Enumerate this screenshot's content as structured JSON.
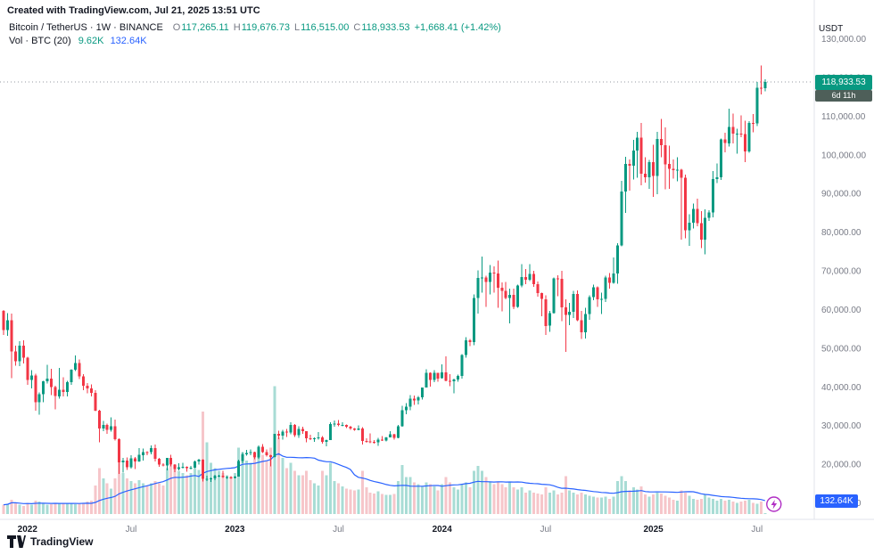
{
  "attribution": "Created with TradingView.com, Jul 21, 2025 13:51 UTC",
  "legend": {
    "symbol": "Bitcoin / TetherUS · 1W · BINANCE",
    "ohlc": {
      "o_label": "O",
      "o": "117,265.11",
      "h_label": "H",
      "h": "119,676.73",
      "l_label": "L",
      "l": "116,515.00",
      "c_label": "C",
      "c": "118,933.53",
      "change": "+1,668.41 (+1.42%)"
    },
    "volume_row": {
      "label": "Vol · BTC (20)",
      "current": "9.62K",
      "ma": "132.64K"
    }
  },
  "axis": {
    "currency": "USDT",
    "price_badge": "118,933.53",
    "countdown_badge": "6d 11h",
    "volume_badge": "132.64K"
  },
  "footer": {
    "logo_text": "TradingView"
  },
  "colors": {
    "up": "#089981",
    "down": "#f23645",
    "vol_up": "#a8dcd5",
    "vol_down": "#f6c6ca",
    "ma_line": "#2962ff",
    "accent_blue": "#2962ff",
    "badge_green": "#089981",
    "countdown_bg": "#4e5f59",
    "price_line": "#9598a1",
    "axis_text": "#787b86",
    "dark_text": "#131722",
    "axis_line": "#e0e3eb",
    "flash": "#b02ec4"
  },
  "chart_data": {
    "type": "candlestick",
    "title": "Bitcoin / TetherUS weekly candles with volume, BINANCE",
    "timeframe": "1W",
    "unit_price": "thousand USDT",
    "unit_volume": "thousand BTC",
    "ylim": [
      10,
      130
    ],
    "grid": false,
    "price_line": 118.93353,
    "vol_ma_period": 20,
    "y_ticks": [
      {
        "v": 130,
        "label": "130,000.00"
      },
      {
        "v": 120,
        "label": "120,000.00"
      },
      {
        "v": 110,
        "label": "110,000.00"
      },
      {
        "v": 100,
        "label": "100,000.00"
      },
      {
        "v": 90,
        "label": "90,000.00"
      },
      {
        "v": 80,
        "label": "80,000.00"
      },
      {
        "v": 70,
        "label": "70,000.00"
      },
      {
        "v": 60,
        "label": "60,000.00"
      },
      {
        "v": 50,
        "label": "50,000.00"
      },
      {
        "v": 40,
        "label": "40,000.00"
      },
      {
        "v": 30,
        "label": "30,000.00"
      },
      {
        "v": 20,
        "label": "20,000.00"
      },
      {
        "v": 10,
        "label": "10,000.00"
      }
    ],
    "x_ticks": [
      {
        "i": 6,
        "label": "2022",
        "bold": true
      },
      {
        "i": 32,
        "label": "Jul",
        "bold": false
      },
      {
        "i": 58,
        "label": "2023",
        "bold": true
      },
      {
        "i": 84,
        "label": "Jul",
        "bold": false
      },
      {
        "i": 110,
        "label": "2024",
        "bold": true
      },
      {
        "i": 136,
        "label": "Jul",
        "bold": false
      },
      {
        "i": 163,
        "label": "2025",
        "bold": true
      },
      {
        "i": 189,
        "label": "Jul",
        "bold": false
      }
    ],
    "weeks": [
      [
        59.7,
        60.0,
        53.5,
        54.8,
        90
      ],
      [
        54.8,
        59.2,
        53.3,
        57.3,
        100
      ],
      [
        57.3,
        59.1,
        42.3,
        49.3,
        140
      ],
      [
        49.3,
        50.8,
        45.6,
        46.7,
        110
      ],
      [
        46.7,
        51.9,
        45.5,
        50.8,
        90
      ],
      [
        50.8,
        52.1,
        46.1,
        47.7,
        80
      ],
      [
        47.7,
        47.9,
        40.6,
        41.9,
        110
      ],
      [
        41.9,
        44.4,
        39.7,
        43.1,
        90
      ],
      [
        43.1,
        43.5,
        34.0,
        36.2,
        130
      ],
      [
        36.2,
        38.7,
        32.9,
        38.2,
        120
      ],
      [
        38.2,
        41.7,
        36.2,
        41.5,
        100
      ],
      [
        41.5,
        45.8,
        41.0,
        42.2,
        90
      ],
      [
        42.2,
        44.8,
        38.0,
        40.1,
        95
      ],
      [
        40.1,
        40.4,
        34.3,
        37.7,
        110
      ],
      [
        37.7,
        45.0,
        37.0,
        39.4,
        100
      ],
      [
        39.4,
        42.6,
        37.6,
        38.8,
        100
      ],
      [
        38.8,
        41.7,
        37.6,
        41.3,
        110
      ],
      [
        41.3,
        44.7,
        40.6,
        44.5,
        100
      ],
      [
        44.5,
        48.2,
        44.2,
        46.3,
        95
      ],
      [
        46.3,
        47.2,
        42.1,
        42.8,
        100
      ],
      [
        42.8,
        43.4,
        39.2,
        40.4,
        110
      ],
      [
        40.4,
        41.1,
        38.5,
        39.7,
        120
      ],
      [
        39.7,
        40.8,
        37.7,
        38.6,
        130
      ],
      [
        38.6,
        39.2,
        33.8,
        34.0,
        280
      ],
      [
        34.0,
        34.2,
        25.8,
        29.3,
        450
      ],
      [
        29.3,
        31.3,
        28.6,
        30.3,
        350
      ],
      [
        30.3,
        30.6,
        28.0,
        29.0,
        300
      ],
      [
        29.0,
        32.2,
        28.5,
        29.9,
        250
      ],
      [
        29.9,
        31.7,
        26.2,
        26.6,
        350
      ],
      [
        26.6,
        26.8,
        17.6,
        20.6,
        600
      ],
      [
        20.6,
        21.7,
        17.9,
        21.0,
        400
      ],
      [
        21.0,
        21.9,
        18.6,
        19.3,
        350
      ],
      [
        19.3,
        22.4,
        19.0,
        21.6,
        320
      ],
      [
        21.6,
        22.0,
        18.9,
        20.8,
        300
      ],
      [
        20.8,
        24.3,
        20.7,
        22.5,
        330
      ],
      [
        22.5,
        24.2,
        21.1,
        23.3,
        300
      ],
      [
        23.3,
        23.5,
        22.4,
        23.2,
        280
      ],
      [
        23.2,
        25.0,
        22.7,
        24.3,
        300
      ],
      [
        24.3,
        25.2,
        20.8,
        21.5,
        320
      ],
      [
        21.5,
        21.8,
        19.5,
        20.0,
        300
      ],
      [
        20.0,
        20.4,
        19.5,
        19.8,
        280
      ],
      [
        19.8,
        21.8,
        18.5,
        21.7,
        450
      ],
      [
        21.7,
        22.5,
        19.6,
        20.0,
        480
      ],
      [
        20.0,
        20.1,
        18.1,
        18.9,
        450
      ],
      [
        18.9,
        20.4,
        18.5,
        19.3,
        420
      ],
      [
        19.3,
        20.5,
        19.0,
        19.4,
        400
      ],
      [
        19.4,
        19.6,
        18.2,
        19.1,
        380
      ],
      [
        19.1,
        19.7,
        18.7,
        19.2,
        400
      ],
      [
        19.2,
        21.0,
        19.1,
        20.8,
        450
      ],
      [
        20.8,
        21.5,
        20.0,
        21.3,
        430
      ],
      [
        21.3,
        21.4,
        15.6,
        16.3,
        1000
      ],
      [
        16.3,
        17.1,
        15.8,
        16.3,
        700
      ],
      [
        16.3,
        16.7,
        15.5,
        16.5,
        500
      ],
      [
        16.5,
        17.4,
        16.0,
        17.1,
        450
      ],
      [
        17.1,
        17.4,
        16.8,
        17.1,
        420
      ],
      [
        17.1,
        18.4,
        16.6,
        16.8,
        400
      ],
      [
        16.8,
        17.0,
        16.3,
        16.8,
        380
      ],
      [
        16.8,
        17.0,
        16.3,
        16.5,
        350
      ],
      [
        16.5,
        17.0,
        16.5,
        16.9,
        400
      ],
      [
        16.9,
        21.3,
        16.9,
        20.9,
        650
      ],
      [
        20.9,
        23.3,
        20.4,
        22.7,
        600
      ],
      [
        22.7,
        23.8,
        22.3,
        23.0,
        520
      ],
      [
        23.0,
        23.9,
        22.5,
        23.3,
        500
      ],
      [
        23.3,
        23.4,
        21.4,
        21.9,
        550
      ],
      [
        21.9,
        25.0,
        21.5,
        24.6,
        600
      ],
      [
        24.6,
        25.3,
        23.0,
        23.2,
        580
      ],
      [
        23.2,
        23.9,
        22.1,
        22.4,
        520
      ],
      [
        22.4,
        22.6,
        19.6,
        22.0,
        650
      ],
      [
        22.0,
        28.0,
        21.9,
        28.0,
        1250
      ],
      [
        28.0,
        28.8,
        26.6,
        27.5,
        750
      ],
      [
        27.5,
        29.0,
        26.5,
        28.5,
        550
      ],
      [
        28.5,
        29.2,
        27.2,
        28.3,
        450
      ],
      [
        28.3,
        31.0,
        27.8,
        30.3,
        500
      ],
      [
        30.3,
        30.5,
        27.2,
        27.6,
        420
      ],
      [
        27.6,
        29.9,
        26.9,
        29.2,
        380
      ],
      [
        29.2,
        29.8,
        27.9,
        28.6,
        380
      ],
      [
        28.6,
        28.7,
        25.8,
        26.8,
        420
      ],
      [
        26.8,
        27.7,
        26.4,
        26.7,
        330
      ],
      [
        26.7,
        27.1,
        25.9,
        26.8,
        300
      ],
      [
        26.8,
        28.4,
        26.5,
        27.1,
        280
      ],
      [
        27.1,
        27.4,
        25.4,
        25.9,
        420
      ],
      [
        25.9,
        26.5,
        24.8,
        26.3,
        380
      ],
      [
        26.3,
        31.0,
        26.3,
        30.5,
        500
      ],
      [
        30.5,
        31.4,
        29.8,
        30.6,
        320
      ],
      [
        30.6,
        31.5,
        29.9,
        30.3,
        300
      ],
      [
        30.3,
        31.0,
        29.9,
        30.3,
        270
      ],
      [
        30.3,
        30.4,
        29.5,
        29.8,
        250
      ],
      [
        29.8,
        30.0,
        29.0,
        29.3,
        240
      ],
      [
        29.3,
        29.5,
        28.8,
        29.0,
        230
      ],
      [
        29.0,
        30.2,
        28.9,
        29.4,
        240
      ],
      [
        29.4,
        29.7,
        25.2,
        26.1,
        420
      ],
      [
        26.1,
        26.8,
        25.7,
        26.0,
        260
      ],
      [
        26.0,
        28.1,
        25.6,
        25.9,
        210
      ],
      [
        25.9,
        26.4,
        25.4,
        25.8,
        200
      ],
      [
        25.8,
        26.9,
        24.9,
        26.5,
        220
      ],
      [
        26.5,
        27.4,
        26.1,
        26.2,
        195
      ],
      [
        26.2,
        27.2,
        26.0,
        27.0,
        185
      ],
      [
        27.0,
        28.6,
        27.0,
        27.9,
        185
      ],
      [
        27.9,
        28.0,
        26.5,
        26.9,
        195
      ],
      [
        26.9,
        30.3,
        26.8,
        29.9,
        320
      ],
      [
        29.9,
        35.2,
        29.8,
        34.1,
        480
      ],
      [
        34.1,
        35.9,
        33.0,
        35.0,
        360
      ],
      [
        35.0,
        38.0,
        34.1,
        37.1,
        360
      ],
      [
        37.1,
        37.9,
        35.5,
        36.6,
        310
      ],
      [
        36.6,
        37.8,
        35.6,
        37.4,
        290
      ],
      [
        37.4,
        40.0,
        36.8,
        39.9,
        270
      ],
      [
        39.9,
        44.7,
        39.9,
        43.8,
        310
      ],
      [
        43.8,
        43.9,
        40.2,
        41.9,
        290
      ],
      [
        41.9,
        44.4,
        41.3,
        43.7,
        270
      ],
      [
        43.7,
        43.8,
        41.5,
        42.3,
        230
      ],
      [
        42.3,
        45.9,
        42.2,
        43.9,
        290
      ],
      [
        43.9,
        48.0,
        41.5,
        41.7,
        360
      ],
      [
        41.7,
        43.4,
        40.3,
        41.6,
        310
      ],
      [
        41.6,
        42.2,
        38.5,
        42.0,
        260
      ],
      [
        42.0,
        43.3,
        41.4,
        42.9,
        240
      ],
      [
        42.9,
        48.6,
        42.2,
        48.3,
        290
      ],
      [
        48.3,
        52.9,
        47.6,
        52.1,
        310
      ],
      [
        52.1,
        52.5,
        50.6,
        51.7,
        260
      ],
      [
        51.7,
        64.0,
        50.9,
        63.1,
        420
      ],
      [
        63.1,
        70.2,
        59.0,
        68.3,
        470
      ],
      [
        68.3,
        73.8,
        64.5,
        68.4,
        420
      ],
      [
        68.4,
        68.9,
        60.8,
        67.2,
        360
      ],
      [
        67.2,
        71.6,
        64.0,
        69.6,
        310
      ],
      [
        69.6,
        71.3,
        64.5,
        69.4,
        290
      ],
      [
        69.4,
        72.8,
        60.6,
        65.7,
        310
      ],
      [
        65.7,
        67.1,
        59.6,
        64.9,
        290
      ],
      [
        64.9,
        67.2,
        62.8,
        63.1,
        260
      ],
      [
        63.1,
        65.5,
        56.5,
        63.9,
        310
      ],
      [
        63.9,
        65.5,
        60.2,
        60.8,
        260
      ],
      [
        60.8,
        66.6,
        60.6,
        66.3,
        240
      ],
      [
        66.3,
        71.9,
        65.9,
        68.5,
        260
      ],
      [
        68.5,
        70.6,
        66.7,
        67.8,
        210
      ],
      [
        67.8,
        71.9,
        67.5,
        69.3,
        230
      ],
      [
        69.3,
        70.1,
        66.0,
        66.7,
        210
      ],
      [
        66.7,
        67.3,
        63.4,
        64.3,
        200
      ],
      [
        64.3,
        64.5,
        58.4,
        62.8,
        190
      ],
      [
        62.8,
        63.8,
        53.5,
        55.9,
        260
      ],
      [
        55.9,
        59.8,
        54.3,
        59.2,
        210
      ],
      [
        59.2,
        68.4,
        59.0,
        68.2,
        230
      ],
      [
        68.2,
        69.0,
        63.5,
        68.0,
        190
      ],
      [
        68.0,
        70.1,
        57.1,
        60.7,
        210
      ],
      [
        60.7,
        62.7,
        49.1,
        58.7,
        370
      ],
      [
        58.7,
        61.8,
        56.1,
        59.5,
        230
      ],
      [
        59.5,
        64.9,
        57.9,
        64.1,
        210
      ],
      [
        64.1,
        65.1,
        57.1,
        57.3,
        190
      ],
      [
        57.3,
        59.8,
        52.5,
        54.2,
        210
      ],
      [
        54.2,
        60.6,
        52.6,
        59.0,
        190
      ],
      [
        59.0,
        63.8,
        57.5,
        63.3,
        180
      ],
      [
        63.3,
        66.5,
        62.5,
        65.9,
        170
      ],
      [
        65.9,
        66.1,
        60.8,
        62.8,
        160
      ],
      [
        62.8,
        64.5,
        58.9,
        62.9,
        160
      ],
      [
        62.9,
        68.9,
        62.1,
        68.4,
        170
      ],
      [
        68.4,
        69.5,
        65.5,
        67.0,
        150
      ],
      [
        67.0,
        73.6,
        66.8,
        69.4,
        170
      ],
      [
        69.4,
        77.2,
        66.8,
        76.7,
        320
      ],
      [
        76.7,
        93.4,
        76.5,
        90.6,
        370
      ],
      [
        90.6,
        99.6,
        85.1,
        97.7,
        320
      ],
      [
        97.7,
        98.9,
        90.8,
        97.3,
        230
      ],
      [
        97.3,
        104.0,
        93.7,
        101.2,
        260
      ],
      [
        101.2,
        106.1,
        94.2,
        104.5,
        240
      ],
      [
        104.5,
        108.3,
        92.2,
        95.2,
        270
      ],
      [
        95.2,
        99.5,
        92.9,
        94.3,
        190
      ],
      [
        94.3,
        98.8,
        91.3,
        98.2,
        170
      ],
      [
        98.2,
        102.7,
        89.2,
        94.6,
        190
      ],
      [
        94.6,
        106.0,
        89.9,
        104.2,
        210
      ],
      [
        104.2,
        109.4,
        99.5,
        102.6,
        200
      ],
      [
        102.6,
        107.2,
        91.2,
        97.7,
        180
      ],
      [
        97.7,
        102.5,
        91.3,
        96.5,
        160
      ],
      [
        96.5,
        98.9,
        94.0,
        96.1,
        140
      ],
      [
        96.1,
        99.5,
        93.3,
        96.3,
        130
      ],
      [
        96.3,
        96.5,
        78.2,
        94.2,
        230
      ],
      [
        94.2,
        95.0,
        78.5,
        80.6,
        210
      ],
      [
        80.6,
        84.7,
        76.6,
        82.6,
        180
      ],
      [
        82.6,
        87.5,
        81.1,
        86.1,
        150
      ],
      [
        86.1,
        88.8,
        81.6,
        82.4,
        140
      ],
      [
        82.4,
        85.6,
        76.0,
        78.2,
        150
      ],
      [
        78.2,
        86.0,
        74.4,
        83.8,
        190
      ],
      [
        83.8,
        85.8,
        83.0,
        85.2,
        160
      ],
      [
        85.2,
        95.9,
        83.9,
        93.8,
        150
      ],
      [
        93.8,
        97.9,
        92.8,
        94.3,
        130
      ],
      [
        94.3,
        104.3,
        93.6,
        104.1,
        150
      ],
      [
        104.1,
        105.8,
        100.7,
        103.1,
        130
      ],
      [
        103.1,
        112.0,
        102.3,
        107.3,
        140
      ],
      [
        107.3,
        110.8,
        103.1,
        105.6,
        120
      ],
      [
        105.6,
        106.8,
        100.4,
        105.6,
        110
      ],
      [
        105.6,
        110.3,
        104.6,
        105.5,
        120
      ],
      [
        105.5,
        108.9,
        98.2,
        101.0,
        130
      ],
      [
        101.0,
        108.8,
        100.6,
        108.4,
        140
      ],
      [
        108.4,
        110.6,
        105.9,
        108.2,
        110
      ],
      [
        108.2,
        118.9,
        107.5,
        117.5,
        100
      ],
      [
        117.5,
        123.2,
        115.7,
        117.2,
        120
      ],
      [
        117.265,
        119.677,
        116.515,
        118.934,
        9.62
      ]
    ]
  }
}
